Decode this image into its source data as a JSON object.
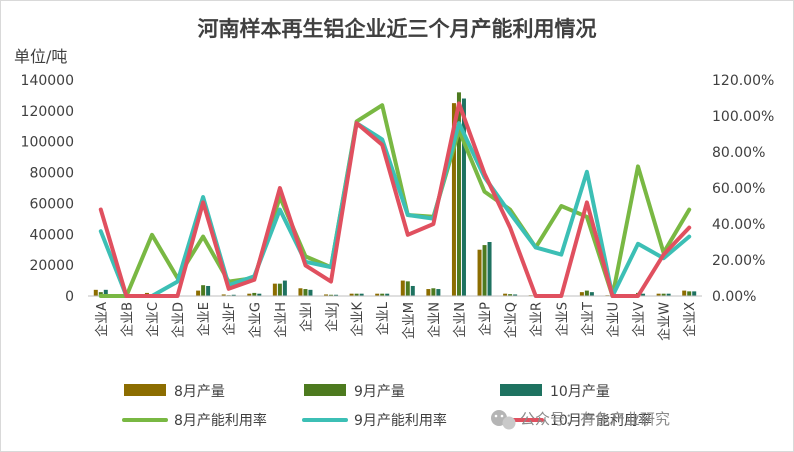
{
  "chart_data": {
    "type": "bar",
    "title": "河南样本再生铝企业近三个月产能利用情况",
    "y_unit_label": "单位/吨",
    "ylim": [
      0,
      140000
    ],
    "y2lim": [
      0,
      1.2
    ],
    "y_ticks": [
      "0",
      "20000",
      "40000",
      "60000",
      "80000",
      "100000",
      "120000",
      "140000"
    ],
    "y2_ticks": [
      "0.00%",
      "20.00%",
      "40.00%",
      "60.00%",
      "80.00%",
      "100.00%",
      "120.00%"
    ],
    "categories": [
      "企业A",
      "企业B",
      "企业C",
      "企业D",
      "企业E",
      "企业F",
      "企业G",
      "企业H",
      "企业I",
      "企业J",
      "企业K",
      "企业L",
      "企业M",
      "企业N",
      "企业N",
      "企业P",
      "企业Q",
      "企业R",
      "企业S",
      "企业T",
      "企业U",
      "企业V",
      "企业W",
      "企业X"
    ],
    "bar_series": [
      {
        "name": "8月产量",
        "color": "#8c6d00",
        "values": [
          4000,
          0,
          2000,
          0,
          3500,
          1000,
          1500,
          8000,
          5000,
          1000,
          1500,
          1500,
          10000,
          4500,
          125000,
          30000,
          1500,
          500,
          0,
          2500,
          500,
          1000,
          1500,
          3500
        ]
      },
      {
        "name": "9月产量",
        "color": "#4d7a1f",
        "values": [
          2500,
          0,
          500,
          0,
          7000,
          500,
          2000,
          8000,
          4500,
          800,
          1500,
          1500,
          9500,
          5000,
          132000,
          33000,
          1200,
          0,
          0,
          3500,
          0,
          2000,
          1500,
          3000
        ]
      },
      {
        "name": "10月产量",
        "color": "#1e7260",
        "values": [
          4000,
          0,
          800,
          0,
          6500,
          800,
          1500,
          10000,
          4000,
          800,
          1500,
          1500,
          6500,
          4500,
          128000,
          35000,
          1000,
          0,
          0,
          2500,
          0,
          1500,
          1500,
          3000
        ]
      }
    ],
    "line_series": [
      {
        "name": "8月产能利用率",
        "color": "#79b843",
        "values": [
          0.0,
          0.0,
          0.34,
          0.1,
          0.33,
          0.08,
          0.1,
          0.55,
          0.22,
          0.16,
          0.97,
          1.06,
          0.45,
          0.44,
          0.92,
          0.58,
          0.48,
          0.27,
          0.5,
          0.44,
          0.0,
          0.72,
          0.24,
          0.48
        ]
      },
      {
        "name": "9月产能利用率",
        "color": "#3cbfb5",
        "values": [
          0.36,
          0.0,
          0.0,
          0.08,
          0.55,
          0.06,
          0.11,
          0.48,
          0.19,
          0.16,
          0.96,
          0.87,
          0.45,
          0.43,
          0.96,
          0.66,
          0.46,
          0.27,
          0.23,
          0.69,
          0.0,
          0.29,
          0.21,
          0.33
        ]
      },
      {
        "name": "10月产能利用率",
        "color": "#e0505f",
        "values": [
          0.48,
          0.0,
          0.0,
          0.0,
          0.52,
          0.04,
          0.09,
          0.6,
          0.17,
          0.08,
          0.96,
          0.84,
          0.34,
          0.4,
          1.07,
          0.68,
          0.38,
          0.0,
          0.0,
          0.52,
          0.0,
          0.0,
          0.23,
          0.38
        ]
      }
    ],
    "legend": {
      "position": "bottom"
    },
    "grid": false
  },
  "watermark": {
    "text": "公众号：有色产业研究",
    "icon": "wechat-icon"
  }
}
